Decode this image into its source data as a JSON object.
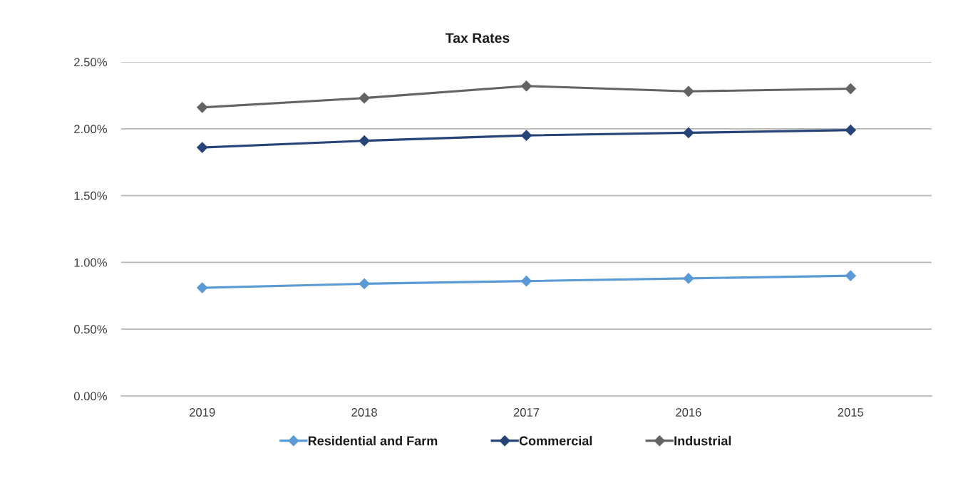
{
  "chart_data": {
    "type": "line",
    "title": "Tax Rates",
    "categories": [
      "2019",
      "2018",
      "2017",
      "2016",
      "2015"
    ],
    "series": [
      {
        "name": "Residential and Farm",
        "color": "#5b9bd5",
        "values": [
          0.81,
          0.84,
          0.86,
          0.88,
          0.9
        ]
      },
      {
        "name": "Commercial",
        "color": "#264478",
        "values": [
          1.86,
          1.91,
          1.95,
          1.97,
          1.99
        ]
      },
      {
        "name": "Industrial",
        "color": "#636363",
        "values": [
          2.16,
          2.23,
          2.32,
          2.28,
          2.3
        ]
      }
    ],
    "ylim": [
      0,
      2.5
    ],
    "yticks": [
      {
        "value": 0,
        "label": "0.00%"
      },
      {
        "value": 0.5,
        "label": "0.50%"
      },
      {
        "value": 1.0,
        "label": "1.00%"
      },
      {
        "value": 1.5,
        "label": "1.50%"
      },
      {
        "value": 2.0,
        "label": "2.00%"
      },
      {
        "value": 2.5,
        "label": "2.50%"
      }
    ],
    "grid": "y",
    "legend": "bottom",
    "marker": "diamond",
    "line_style": "solid"
  }
}
